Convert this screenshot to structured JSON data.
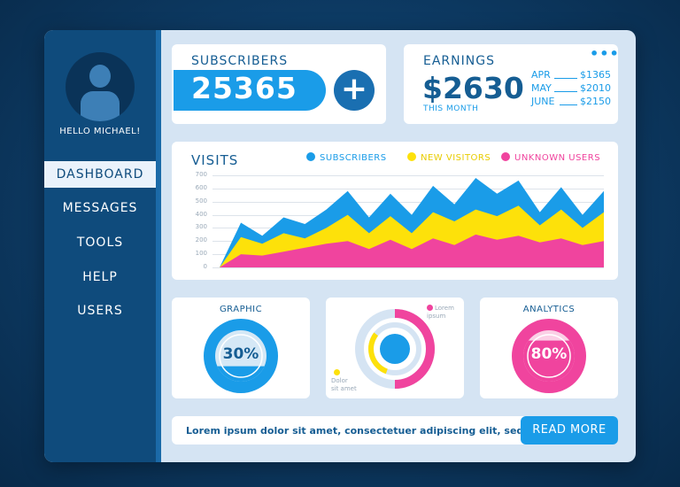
{
  "colors": {
    "accent_blue": "#1a9ce8",
    "navy": "#0f4b7c",
    "yellow": "#fde10a",
    "pink": "#f0449e"
  },
  "sidebar": {
    "greeting": "HELLO MICHAEL!",
    "avatar_icon": "user-avatar-icon",
    "items": [
      {
        "label": "DASHBOARD",
        "active": true
      },
      {
        "label": "MESSAGES",
        "active": false
      },
      {
        "label": "TOOLS",
        "active": false
      },
      {
        "label": "HELP",
        "active": false
      },
      {
        "label": "USERS",
        "active": false
      }
    ]
  },
  "subscribers": {
    "title": "SUBSCRIBERS",
    "count": "25365",
    "add_icon": "plus-icon",
    "add_label": "+"
  },
  "earnings": {
    "title": "EARNINGS",
    "amount": "$2630",
    "period": "THIS MONTH",
    "more_icon": "more-dots-icon",
    "more_label": "•••",
    "rows": [
      {
        "month": "APR",
        "value": "$1365"
      },
      {
        "month": "MAY",
        "value": "$2010"
      },
      {
        "month": "JUNE",
        "value": "$2150"
      }
    ]
  },
  "visits": {
    "title": "VISITS",
    "legend": [
      {
        "label": "SUBSCRIBERS",
        "color": "#1a9ce8"
      },
      {
        "label": "NEW VISITORS",
        "color": "#fde10a"
      },
      {
        "label": "UNKNOWN USERS",
        "color": "#f0449e"
      }
    ]
  },
  "chart_data": {
    "type": "area",
    "title": "VISITS",
    "xlabel": "",
    "ylabel": "",
    "ylim": [
      0,
      700
    ],
    "yticks": [
      "700",
      "600",
      "500",
      "400",
      "300",
      "200",
      "100",
      "0"
    ],
    "grid": true,
    "legend_position": "top-right",
    "x": [
      0,
      1,
      2,
      3,
      4,
      5,
      6,
      7,
      8,
      9,
      10,
      11,
      12,
      13,
      14,
      15,
      16,
      17,
      18
    ],
    "series": [
      {
        "name": "SUBSCRIBERS",
        "color": "#1a9ce8",
        "values": [
          0,
          340,
          240,
          380,
          330,
          440,
          580,
          380,
          560,
          400,
          620,
          480,
          680,
          560,
          660,
          420,
          610,
          400,
          580
        ]
      },
      {
        "name": "NEW VISITORS",
        "color": "#fde10a",
        "values": [
          0,
          230,
          180,
          260,
          220,
          300,
          400,
          260,
          390,
          260,
          420,
          350,
          440,
          390,
          470,
          320,
          440,
          300,
          420
        ]
      },
      {
        "name": "UNKNOWN USERS",
        "color": "#f0449e",
        "values": [
          0,
          100,
          90,
          120,
          150,
          180,
          200,
          140,
          210,
          140,
          220,
          170,
          250,
          210,
          240,
          190,
          220,
          170,
          200
        ]
      }
    ]
  },
  "graphic": {
    "title": "GRAPHIC",
    "percent_label": "30%",
    "percent": 30
  },
  "donut": {
    "pink_label": "Lorem\nipsum",
    "yellow_label": "Dolor\nsit amet",
    "pink_fraction": 0.5,
    "yellow_fraction": 0.3
  },
  "analytics": {
    "title": "ANALYTICS",
    "percent_label": "80%",
    "percent": 80
  },
  "footer": {
    "text": "Lorem ipsum dolor sit amet, consectetuer adipiscing elit, sed diam...",
    "button_label": "READ MORE"
  }
}
